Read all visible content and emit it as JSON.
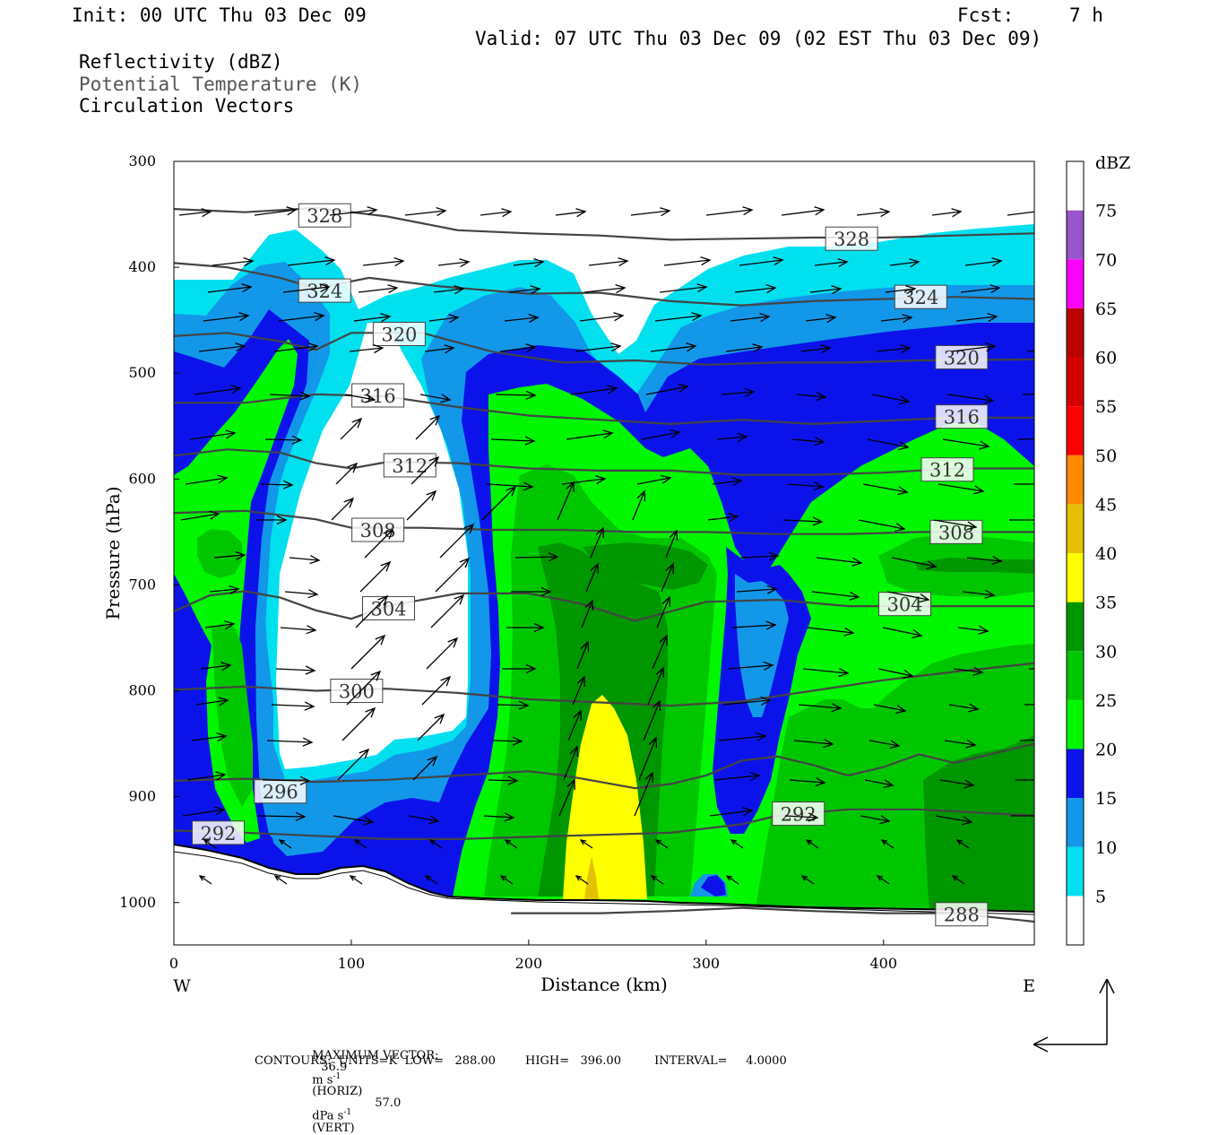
{
  "header": {
    "init": "Init: 00 UTC Thu 03 Dec 09",
    "fcst_label": "Fcst:",
    "fcst_value": "7 h",
    "valid": "Valid: 07 UTC Thu 03 Dec 09 (02 EST Thu 03 Dec 09)",
    "field1": "Reflectivity (dBZ)",
    "field2": "Potential Temperature (K)",
    "field3": "Circulation Vectors"
  },
  "footer": {
    "max_vector_label": "MAXIMUM VECTOR:",
    "max_horiz_val": "36.9",
    "max_horiz_unit_a": "m s",
    "max_horiz_exp": "-1",
    "max_horiz_unit_b": "(HORIZ)",
    "max_vert_val": "57.0",
    "max_vert_unit_a": "dPa s",
    "max_vert_exp": "-1",
    "max_vert_unit_b": "(VERT)",
    "contours": "CONTOURS:  UNITS=K  LOW=   288.00        HIGH=   396.00         INTERVAL=     4.0000"
  },
  "colors": {
    "c5": "#00e0ef",
    "c10": "#1397e8",
    "c15": "#0c13ea",
    "c20": "#00f700",
    "c25": "#00c600",
    "c30": "#009600",
    "c35": "#ffff00",
    "c40": "#e4c100",
    "c45": "#ff8c00",
    "c50": "#ff0000",
    "c55": "#d40000",
    "c60": "#bb0000",
    "c65": "#ff00ff",
    "c70": "#9955cc",
    "c75": "#ffffff",
    "theta": "#444444"
  },
  "chart_data": {
    "type": "contour",
    "xlabel": "Distance (km)",
    "ylabel": "Pressure (hPa)",
    "x_ticks": [
      "0",
      "100",
      "200",
      "300",
      "400"
    ],
    "x_tick_values": [
      0,
      100,
      200,
      300,
      400
    ],
    "y_ticks": [
      "300",
      "400",
      "500",
      "600",
      "700",
      "800",
      "900",
      "1000"
    ],
    "y_tick_values": [
      300,
      400,
      500,
      600,
      700,
      800,
      900,
      1000
    ],
    "xlim": [
      0,
      485
    ],
    "ylim": [
      1040,
      300
    ],
    "west_label": "W",
    "east_label": "E",
    "colorbar": {
      "unit": "dBZ",
      "levels": [
        5,
        10,
        15,
        20,
        25,
        30,
        35,
        40,
        45,
        50,
        55,
        60,
        65,
        70,
        75
      ],
      "level_labels": [
        "5",
        "10",
        "15",
        "20",
        "25",
        "30",
        "35",
        "40",
        "45",
        "50",
        "55",
        "60",
        "65",
        "70",
        "75"
      ],
      "colors": [
        "#00e0ef",
        "#1397e8",
        "#0c13ea",
        "#00f700",
        "#00c600",
        "#009600",
        "#ffff00",
        "#e4c100",
        "#ff8c00",
        "#ff0000",
        "#d40000",
        "#bb0000",
        "#ff00ff",
        "#9955cc",
        "#ffffff"
      ]
    },
    "theta_contours": [
      {
        "value": 328,
        "label": "328",
        "label_points": [
          [
            85,
            351
          ],
          [
            382,
            373
          ]
        ],
        "points": [
          [
            0,
            345
          ],
          [
            40,
            348
          ],
          [
            80,
            344
          ],
          [
            120,
            352
          ],
          [
            160,
            365
          ],
          [
            200,
            368
          ],
          [
            240,
            370
          ],
          [
            280,
            374
          ],
          [
            320,
            373
          ],
          [
            360,
            372
          ],
          [
            400,
            372
          ],
          [
            440,
            370
          ],
          [
            485,
            368
          ]
        ]
      },
      {
        "value": 324,
        "label": "324",
        "label_points": [
          [
            85,
            422
          ],
          [
            421,
            428
          ]
        ],
        "points": [
          [
            0,
            396
          ],
          [
            30,
            400
          ],
          [
            60,
            410
          ],
          [
            80,
            420
          ],
          [
            110,
            410
          ],
          [
            150,
            418
          ],
          [
            200,
            425
          ],
          [
            240,
            424
          ],
          [
            280,
            432
          ],
          [
            320,
            436
          ],
          [
            360,
            432
          ],
          [
            400,
            430
          ],
          [
            440,
            428
          ],
          [
            485,
            430
          ]
        ]
      },
      {
        "value": 320,
        "label": "320",
        "label_points": [
          [
            127,
            463
          ],
          [
            444,
            485
          ]
        ],
        "points": [
          [
            0,
            465
          ],
          [
            30,
            462
          ],
          [
            60,
            470
          ],
          [
            80,
            478
          ],
          [
            100,
            462
          ],
          [
            140,
            462
          ],
          [
            180,
            480
          ],
          [
            220,
            490
          ],
          [
            260,
            488
          ],
          [
            300,
            492
          ],
          [
            340,
            490
          ],
          [
            380,
            490
          ],
          [
            420,
            488
          ],
          [
            485,
            487
          ]
        ]
      },
      {
        "value": 316,
        "label": "316",
        "label_points": [
          [
            115,
            521
          ],
          [
            444,
            541
          ]
        ],
        "points": [
          [
            0,
            528
          ],
          [
            40,
            528
          ],
          [
            80,
            520
          ],
          [
            120,
            522
          ],
          [
            160,
            532
          ],
          [
            200,
            540
          ],
          [
            240,
            544
          ],
          [
            280,
            548
          ],
          [
            320,
            544
          ],
          [
            360,
            548
          ],
          [
            400,
            545
          ],
          [
            440,
            542
          ],
          [
            485,
            542
          ]
        ]
      },
      {
        "value": 312,
        "label": "312",
        "label_points": [
          [
            133,
            587
          ],
          [
            436,
            591
          ]
        ],
        "points": [
          [
            0,
            578
          ],
          [
            30,
            572
          ],
          [
            60,
            575
          ],
          [
            80,
            585
          ],
          [
            100,
            590
          ],
          [
            120,
            584
          ],
          [
            160,
            585
          ],
          [
            200,
            590
          ],
          [
            240,
            592
          ],
          [
            280,
            592
          ],
          [
            320,
            596
          ],
          [
            360,
            596
          ],
          [
            400,
            594
          ],
          [
            440,
            590
          ],
          [
            485,
            590
          ]
        ]
      },
      {
        "value": 308,
        "label": "308",
        "label_points": [
          [
            115,
            648
          ],
          [
            441,
            650
          ]
        ],
        "points": [
          [
            0,
            632
          ],
          [
            40,
            630
          ],
          [
            80,
            638
          ],
          [
            100,
            646
          ],
          [
            140,
            646
          ],
          [
            180,
            648
          ],
          [
            220,
            648
          ],
          [
            260,
            650
          ],
          [
            300,
            650
          ],
          [
            340,
            652
          ],
          [
            380,
            652
          ],
          [
            420,
            650
          ],
          [
            485,
            650
          ]
        ]
      },
      {
        "value": 304,
        "label": "304",
        "label_points": [
          [
            121,
            722
          ],
          [
            412,
            718
          ]
        ],
        "points": [
          [
            0,
            725
          ],
          [
            20,
            710
          ],
          [
            40,
            706
          ],
          [
            60,
            712
          ],
          [
            80,
            724
          ],
          [
            100,
            732
          ],
          [
            120,
            720
          ],
          [
            160,
            708
          ],
          [
            200,
            708
          ],
          [
            230,
            718
          ],
          [
            260,
            734
          ],
          [
            300,
            716
          ],
          [
            340,
            714
          ],
          [
            380,
            720
          ],
          [
            420,
            720
          ],
          [
            485,
            720
          ]
        ]
      },
      {
        "value": 300,
        "label": "300",
        "label_points": [
          [
            103,
            800
          ]
        ],
        "points": [
          [
            0,
            799
          ],
          [
            40,
            796
          ],
          [
            80,
            800
          ],
          [
            120,
            798
          ],
          [
            160,
            802
          ],
          [
            200,
            808
          ],
          [
            240,
            811
          ],
          [
            280,
            814
          ],
          [
            320,
            810
          ],
          [
            360,
            800
          ],
          [
            400,
            790
          ],
          [
            440,
            782
          ],
          [
            485,
            774
          ]
        ]
      },
      {
        "value": 296,
        "label": "296",
        "label_points": [
          [
            60,
            895
          ]
        ],
        "points": [
          [
            0,
            885
          ],
          [
            40,
            883
          ],
          [
            80,
            886
          ],
          [
            120,
            884
          ],
          [
            160,
            880
          ],
          [
            200,
            876
          ],
          [
            220,
            880
          ],
          [
            240,
            886
          ],
          [
            260,
            892
          ],
          [
            280,
            888
          ],
          [
            300,
            880
          ],
          [
            320,
            866
          ],
          [
            340,
            862
          ],
          [
            360,
            870
          ],
          [
            380,
            880
          ],
          [
            400,
            872
          ],
          [
            420,
            860
          ],
          [
            440,
            868
          ],
          [
            460,
            860
          ],
          [
            485,
            850
          ]
        ]
      },
      {
        "value": 292,
        "label": "292",
        "label_points": [
          [
            25,
            934
          ],
          [
            352,
            916
          ]
        ],
        "points": [
          [
            0,
            932
          ],
          [
            40,
            934
          ],
          [
            80,
            937
          ],
          [
            120,
            940
          ],
          [
            160,
            940
          ],
          [
            200,
            938
          ],
          [
            240,
            936
          ],
          [
            280,
            934
          ],
          [
            320,
            926
          ],
          [
            340,
            918
          ],
          [
            380,
            912
          ],
          [
            420,
            912
          ],
          [
            485,
            918
          ]
        ]
      },
      {
        "value": 288,
        "label": "288",
        "label_points": [
          [
            444,
            1011
          ]
        ],
        "points": [
          [
            190,
            1010
          ],
          [
            240,
            1010
          ],
          [
            280,
            1008
          ],
          [
            320,
            1005
          ],
          [
            360,
            1008
          ],
          [
            400,
            1010
          ],
          [
            440,
            1010
          ],
          [
            485,
            1018
          ]
        ]
      }
    ]
  }
}
